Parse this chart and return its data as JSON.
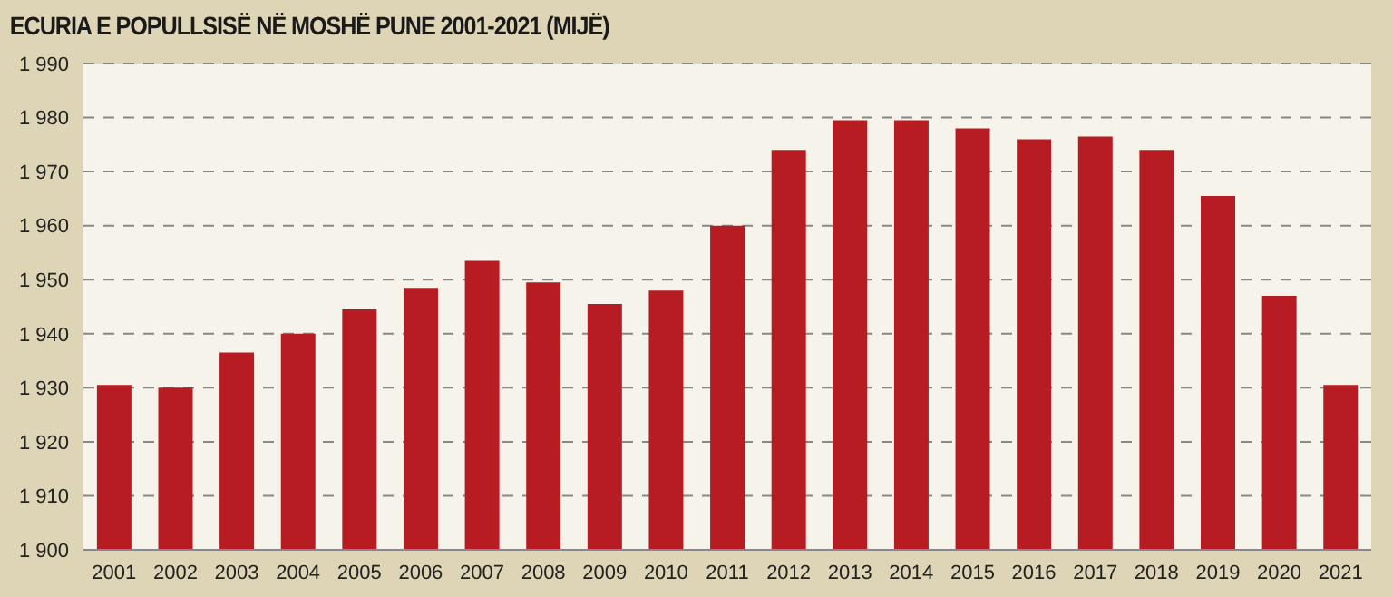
{
  "chart_data": {
    "type": "bar",
    "title": "ECURIA E POPULLSISË NË MOSHË PUNE 2001-2021 (MIJË)",
    "categories": [
      "2001",
      "2002",
      "2003",
      "2004",
      "2005",
      "2006",
      "2007",
      "2008",
      "2009",
      "2010",
      "2011",
      "2012",
      "2013",
      "2014",
      "2015",
      "2016",
      "2017",
      "2018",
      "2019",
      "2020",
      "2021"
    ],
    "values": [
      1930.5,
      1930,
      1936.5,
      1940,
      1944.5,
      1948.5,
      1953.5,
      1949.5,
      1945.5,
      1948,
      1960,
      1974,
      1979.5,
      1979.5,
      1978,
      1976,
      1976.5,
      1974,
      1965.5,
      1947,
      1930.5
    ],
    "color": "#b71c22",
    "ylim": [
      1900,
      1990
    ],
    "yticks": [
      {
        "value": 1900,
        "label": "1 900"
      },
      {
        "value": 1910,
        "label": "1 910"
      },
      {
        "value": 1920,
        "label": "1 920"
      },
      {
        "value": 1930,
        "label": "1 930"
      },
      {
        "value": 1940,
        "label": "1 940"
      },
      {
        "value": 1950,
        "label": "1 950"
      },
      {
        "value": 1960,
        "label": "1 960"
      },
      {
        "value": 1970,
        "label": "1 970"
      },
      {
        "value": 1980,
        "label": "1 980"
      },
      {
        "value": 1990,
        "label": "1 990"
      }
    ],
    "grid": "y"
  }
}
